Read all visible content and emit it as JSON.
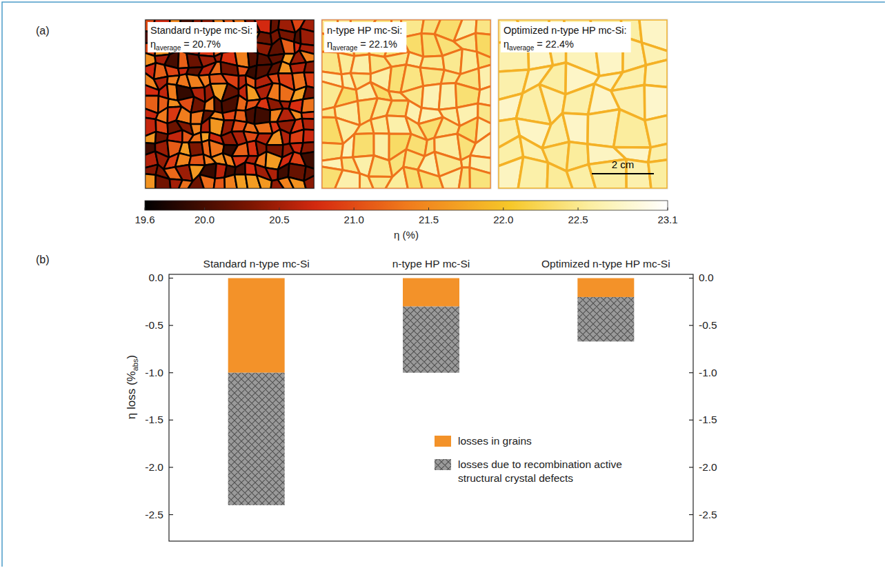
{
  "chart_data": [
    {
      "type": "heatmap",
      "panel_label": "(a)",
      "maps": [
        {
          "title": "Standard n-type mc-Si:",
          "metric": "η",
          "metric_sub": "average",
          "separator": "=",
          "average": 20.7,
          "average_label": "20.7%"
        },
        {
          "title": "n-type HP mc-Si:",
          "metric": "η",
          "metric_sub": "average",
          "separator": "=",
          "average": 22.1,
          "average_label": "22.1%"
        },
        {
          "title": "Optimized n-type HP mc-Si:",
          "metric": "η",
          "metric_sub": "average",
          "separator": "=",
          "average": 22.4,
          "average_label": "22.4%"
        }
      ],
      "scale_bar": "2 cm",
      "colorbar": {
        "range": [
          19.6,
          23.1
        ],
        "ticks": [
          19.6,
          {
            "value": 20,
            "label": "20.0"
          },
          20.5,
          {
            "value": 21,
            "label": "21.0"
          },
          21.5,
          {
            "value": 22,
            "label": "22.0"
          },
          22.5,
          23.1
        ],
        "label": "η (%)"
      }
    },
    {
      "type": "bar",
      "panel_label": "(b)",
      "stacked": true,
      "categories": [
        "Standard n-type mc-Si",
        "n-type HP mc-Si",
        "Optimized n-type HP mc-Si"
      ],
      "series": [
        {
          "name": "losses in grains",
          "color": "#f39229",
          "values": [
            -1.0,
            -0.3,
            -0.2
          ]
        },
        {
          "name": "losses due to recombination active structural crystal defects",
          "color": "#9a9a9a",
          "marker": "crosshatch",
          "values": [
            -1.4,
            -0.7,
            -0.47
          ]
        }
      ],
      "ylabel": {
        "text": "η loss (%",
        "sub": "abs",
        "end": ")"
      },
      "ylim": [
        -2.78,
        0.04
      ],
      "yticks": [
        {
          "value": 0,
          "label": "0.0"
        },
        -0.5,
        {
          "value": -1,
          "label": "-1.0"
        },
        -1.5,
        {
          "value": -2,
          "label": "-2.0"
        },
        -2.5
      ],
      "legend": "lower right"
    }
  ]
}
